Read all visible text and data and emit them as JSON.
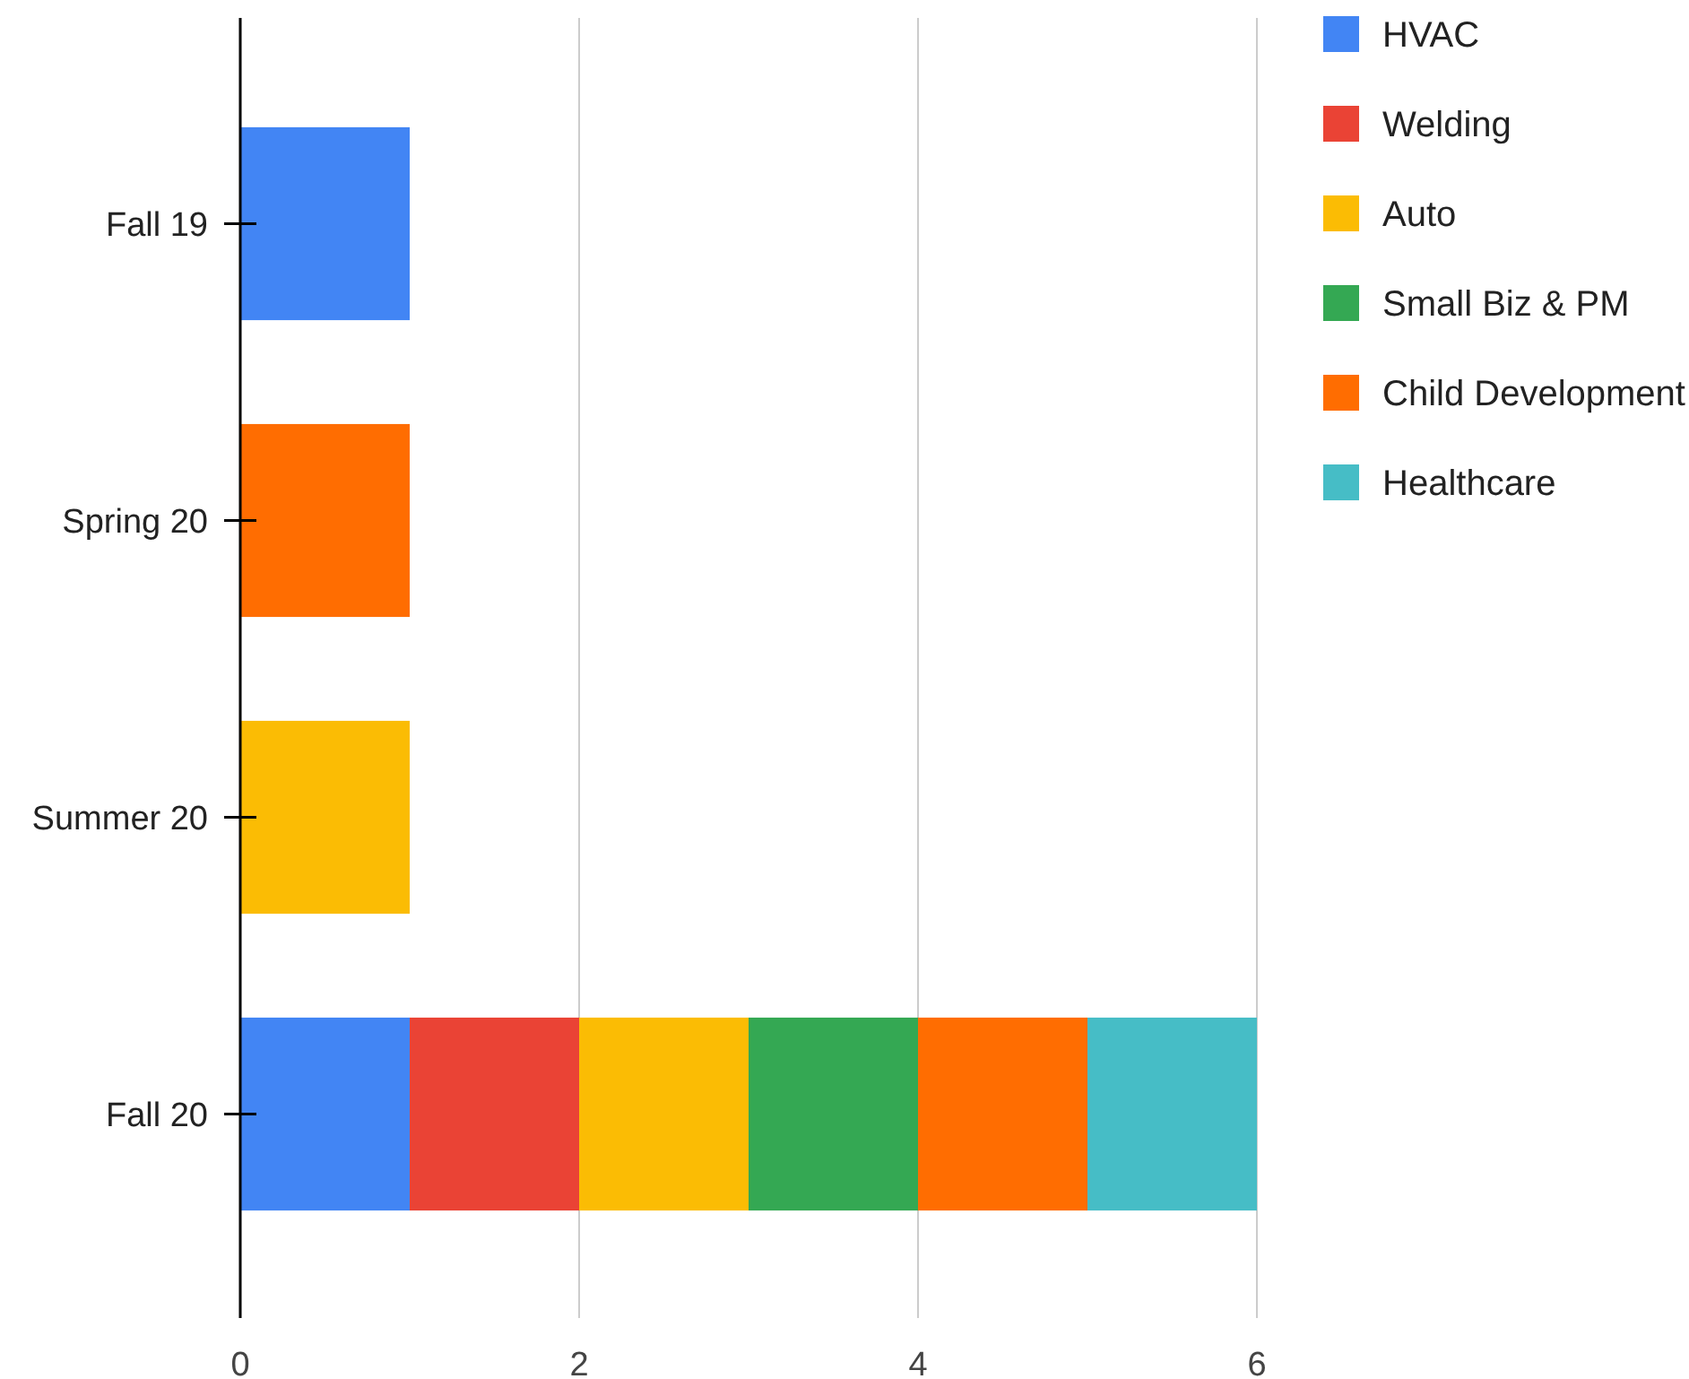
{
  "chart_data": {
    "type": "bar",
    "orientation": "horizontal",
    "stacked": true,
    "categories": [
      "Fall 19",
      "Spring 20",
      "Summer 20",
      "Fall 20"
    ],
    "series": [
      {
        "name": "HVAC",
        "color": "#4285f4",
        "values": [
          1,
          null,
          null,
          1
        ]
      },
      {
        "name": "Welding",
        "color": "#ea4335",
        "values": [
          null,
          null,
          null,
          1
        ]
      },
      {
        "name": "Auto",
        "color": "#fbbc04",
        "values": [
          null,
          null,
          1,
          1
        ]
      },
      {
        "name": "Small Biz & PM",
        "color": "#34a853",
        "values": [
          null,
          null,
          null,
          1
        ]
      },
      {
        "name": "Child Development",
        "color": "#ff6d01",
        "values": [
          null,
          1,
          null,
          1
        ]
      },
      {
        "name": "Healthcare",
        "color": "#46bdc6",
        "values": [
          null,
          null,
          null,
          1
        ]
      }
    ],
    "xlim": [
      0,
      6
    ],
    "xticks": [
      0,
      2,
      4,
      6
    ],
    "grid": "x",
    "legend": "top right"
  }
}
